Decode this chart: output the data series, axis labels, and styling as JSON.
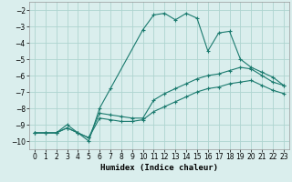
{
  "xlabel": "Humidex (Indice chaleur)",
  "bg_color": "#daeeed",
  "grid_color": "#aed4d0",
  "line_color": "#1a7a6e",
  "xlim": [
    -0.5,
    23.5
  ],
  "ylim": [
    -10.5,
    -1.5
  ],
  "yticks": [
    -10,
    -9,
    -8,
    -7,
    -6,
    -5,
    -4,
    -3,
    -2
  ],
  "xticks": [
    0,
    1,
    2,
    3,
    4,
    5,
    6,
    7,
    8,
    9,
    10,
    11,
    12,
    13,
    14,
    15,
    16,
    17,
    18,
    19,
    20,
    21,
    22,
    23
  ],
  "series1_x": [
    0,
    1,
    2,
    3,
    4,
    5,
    6,
    7,
    10,
    11,
    12,
    13,
    14,
    15,
    16,
    17,
    18,
    19,
    20,
    21,
    22,
    23
  ],
  "series1_y": [
    -9.5,
    -9.5,
    -9.5,
    -9.0,
    -9.5,
    -10.0,
    -8.0,
    -6.8,
    -3.2,
    -2.3,
    -2.2,
    -2.6,
    -2.2,
    -2.5,
    -4.5,
    -3.4,
    -3.3,
    -5.0,
    -5.5,
    -5.8,
    -6.1,
    -6.6
  ],
  "series2_x": [
    0,
    1,
    2,
    3,
    4,
    5,
    6,
    7,
    8,
    9,
    10,
    11,
    12,
    13,
    14,
    15,
    16,
    17,
    18,
    19,
    20,
    21,
    22,
    23
  ],
  "series2_y": [
    -9.5,
    -9.5,
    -9.5,
    -9.2,
    -9.5,
    -9.8,
    -8.3,
    -8.4,
    -8.5,
    -8.6,
    -8.6,
    -7.5,
    -7.1,
    -6.8,
    -6.5,
    -6.2,
    -6.0,
    -5.9,
    -5.7,
    -5.5,
    -5.6,
    -6.0,
    -6.4,
    -6.6
  ],
  "series3_x": [
    0,
    1,
    2,
    3,
    4,
    5,
    6,
    7,
    8,
    9,
    10,
    11,
    12,
    13,
    14,
    15,
    16,
    17,
    18,
    19,
    20,
    21,
    22,
    23
  ],
  "series3_y": [
    -9.5,
    -9.5,
    -9.5,
    -9.2,
    -9.5,
    -9.8,
    -8.6,
    -8.7,
    -8.8,
    -8.8,
    -8.7,
    -8.2,
    -7.9,
    -7.6,
    -7.3,
    -7.0,
    -6.8,
    -6.7,
    -6.5,
    -6.4,
    -6.3,
    -6.6,
    -6.9,
    -7.1
  ],
  "lw": 0.8,
  "ms": 3,
  "tick_labelsize": 5.5,
  "xlabel_fontsize": 6.5
}
